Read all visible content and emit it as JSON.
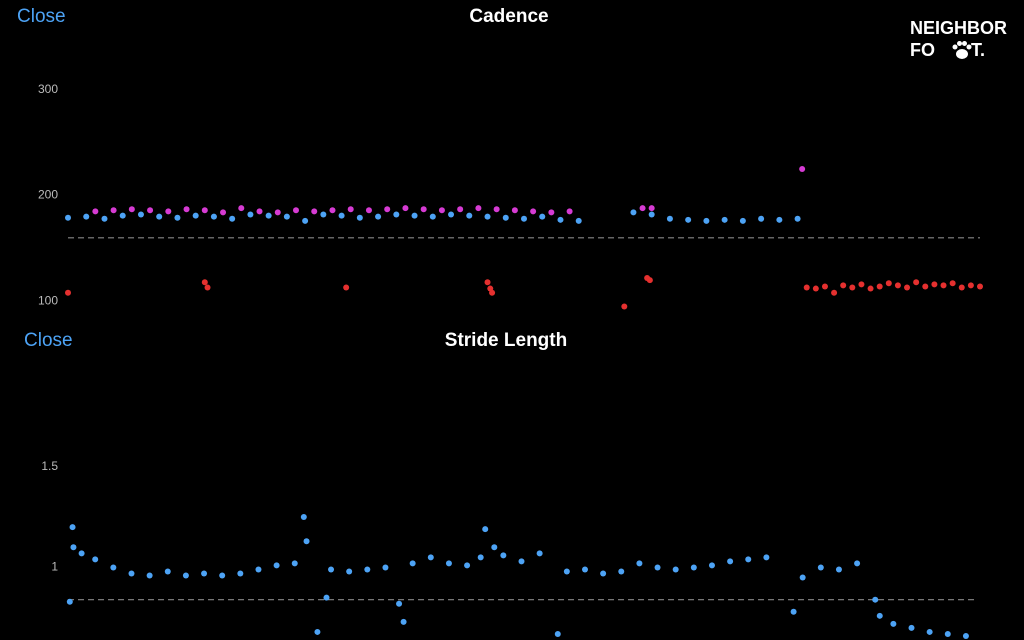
{
  "ui": {
    "close": [
      "Close",
      "Close"
    ],
    "logo": {
      "top": "NEIGHBOR",
      "left": "FO",
      "right": "T."
    }
  },
  "chart_data": [
    {
      "type": "scatter",
      "title": "Cadence",
      "xlim": [
        0,
        100
      ],
      "ylim": [
        87,
        330
      ],
      "yticks": [
        100,
        200,
        300
      ],
      "reference_line": 160,
      "series": [
        {
          "color": "#4da3f5",
          "x": [
            0,
            2,
            4,
            6,
            8,
            10,
            12,
            14,
            16,
            18,
            20,
            22,
            24,
            26,
            28,
            30,
            32,
            34,
            36,
            38,
            40,
            42,
            44,
            46,
            48,
            50,
            52,
            54,
            56,
            62,
            64,
            66,
            68,
            70,
            72,
            74,
            76,
            78,
            80
          ],
          "values": [
            179,
            180,
            178,
            181,
            182,
            180,
            179,
            181,
            180,
            178,
            182,
            181,
            180,
            176,
            182,
            181,
            179,
            180,
            182,
            181,
            180,
            182,
            181,
            180,
            179,
            178,
            180,
            177,
            176,
            184,
            182,
            178,
            177,
            176,
            177,
            176,
            178,
            177,
            178
          ]
        },
        {
          "color": "#d63bd3",
          "x": [
            3,
            5,
            7,
            9,
            11,
            13,
            15,
            17,
            19,
            21,
            23,
            25,
            27,
            29,
            31,
            33,
            35,
            37,
            39,
            41,
            43,
            45,
            47,
            49,
            51,
            53,
            55,
            63,
            64,
            80.5
          ],
          "values": [
            185,
            186,
            187,
            186,
            185,
            187,
            186,
            184,
            188,
            185,
            184,
            186,
            185,
            186,
            187,
            186,
            187,
            188,
            187,
            186,
            187,
            188,
            187,
            186,
            185,
            184,
            185,
            188,
            188,
            225
          ]
        },
        {
          "color": "#e5302f",
          "x": [
            0,
            15,
            15.3,
            30.5,
            46,
            46.3,
            46.5,
            61,
            63.5,
            63.8,
            81,
            82,
            83,
            84,
            85,
            86,
            87,
            88,
            89,
            90,
            91,
            92,
            93,
            94,
            95,
            96,
            97,
            98,
            99,
            100
          ],
          "values": [
            108,
            118,
            113,
            113,
            118,
            112,
            108,
            95,
            122,
            120,
            113,
            112,
            114,
            108,
            115,
            113,
            116,
            112,
            114,
            117,
            115,
            113,
            118,
            114,
            116,
            115,
            117,
            113,
            115,
            114
          ]
        }
      ]
    },
    {
      "type": "scatter",
      "title": "Stride Length",
      "xlim": [
        0,
        100
      ],
      "ylim": [
        0.64,
        1.93
      ],
      "yticks": [
        1,
        1.5
      ],
      "reference_line": 0.84,
      "series": [
        {
          "color": "#4da3f5",
          "x": [
            0.2,
            0.5,
            0.6,
            1.5,
            3,
            5,
            7,
            9,
            11,
            13,
            15,
            17,
            19,
            21,
            23,
            25,
            26,
            26.3,
            27.5,
            28.5,
            29,
            31,
            33,
            35,
            36.5,
            37,
            38,
            40,
            42,
            44,
            45.5,
            46,
            47,
            48,
            50,
            52,
            54,
            55,
            57,
            59,
            61,
            63,
            65,
            67,
            69,
            71,
            73,
            75,
            77,
            80,
            81,
            83,
            85,
            87,
            89,
            89.5,
            91,
            93,
            95,
            97,
            99
          ],
          "values": [
            0.83,
            1.2,
            1.1,
            1.07,
            1.04,
            1.0,
            0.97,
            0.96,
            0.98,
            0.96,
            0.97,
            0.96,
            0.97,
            0.99,
            1.01,
            1.02,
            1.25,
            1.13,
            0.68,
            0.85,
            0.99,
            0.98,
            0.99,
            1.0,
            0.82,
            0.73,
            1.02,
            1.05,
            1.02,
            1.01,
            1.05,
            1.19,
            1.1,
            1.06,
            1.03,
            1.07,
            0.67,
            0.98,
            0.99,
            0.97,
            0.98,
            1.02,
            1.0,
            0.99,
            1.0,
            1.01,
            1.03,
            1.04,
            1.05,
            0.78,
            0.95,
            1.0,
            0.99,
            1.02,
            0.84,
            0.76,
            0.72,
            0.7,
            0.68,
            0.67,
            0.66
          ]
        }
      ]
    }
  ]
}
